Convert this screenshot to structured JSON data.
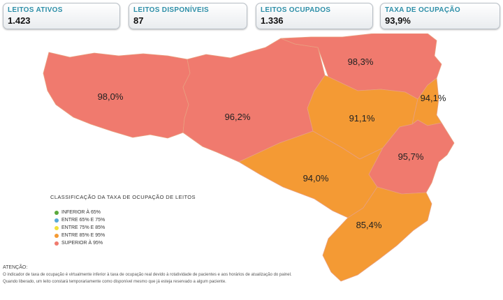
{
  "cards": [
    {
      "label": "LEITOS ATIVOS",
      "value": "1.423"
    },
    {
      "label": "LEITOS DISPONÍVEIS",
      "value": "87"
    },
    {
      "label": "LEITOS OCUPADOS",
      "value": "1.336"
    },
    {
      "label": "TAXA DE OCUPAÇÃO",
      "value": "93,9%"
    }
  ],
  "colors": {
    "superior_95": "#f07a6e",
    "entre_85_95": "#f49a34",
    "entre_75_85": "#f1e13b",
    "entre_65_75": "#55a9d9",
    "inferior_65": "#5aa83c"
  },
  "regions": [
    {
      "name": "oeste",
      "rate": "98,0%",
      "class": "superior_95"
    },
    {
      "name": "meio-oeste",
      "rate": "96,2%",
      "class": "superior_95"
    },
    {
      "name": "planalto-norte",
      "rate": "98,3%",
      "class": "superior_95"
    },
    {
      "name": "vale-do-itajai",
      "rate": "91,1%",
      "class": "entre_85_95"
    },
    {
      "name": "litoral-norte",
      "rate": "94,1%",
      "class": "entre_85_95"
    },
    {
      "name": "serra",
      "rate": "94,0%",
      "class": "entre_85_95"
    },
    {
      "name": "grande-florianopolis",
      "rate": "95,7%",
      "class": "superior_95"
    },
    {
      "name": "sul",
      "rate": "85,4%",
      "class": "entre_85_95"
    }
  ],
  "legend": {
    "title": "CLASSIFICAÇÃO DA TAXA DE OCUPAÇÃO DE LEITOS",
    "items": [
      {
        "label": "INFERIOR À 65%",
        "class": "inferior_65"
      },
      {
        "label": "ENTRE 65% E 75%",
        "class": "entre_65_75"
      },
      {
        "label": "ENTRE 75% E 85%",
        "class": "entre_75_85"
      },
      {
        "label": "ENTRE 85% E 95%",
        "class": "entre_85_95"
      },
      {
        "label": "SUPERIOR À 95%",
        "class": "superior_95"
      }
    ]
  },
  "notes": {
    "heading": "ATENÇÃO:",
    "line1": "O indicador de taxa de ocupação é virtualmente inferior à taxa de ocupação real devido à rotatividade de pacientes e aos horários de atualização do painel.",
    "line2": "Quando liberado, um leito constará temporariamente como disponível mesmo que já esteja reservado a algum paciente."
  }
}
